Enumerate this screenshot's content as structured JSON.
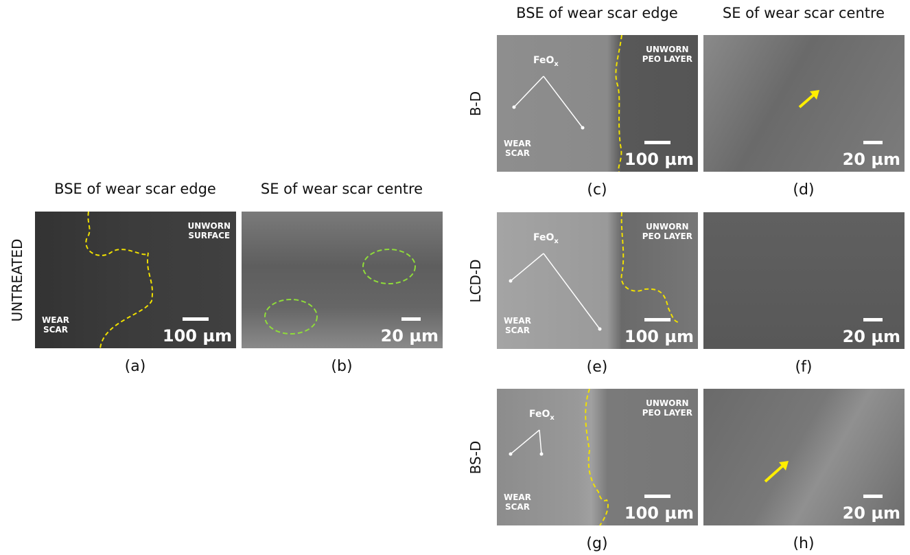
{
  "groups": [
    {
      "headers": [
        "BSE of wear scar edge",
        "SE of wear scar centre"
      ],
      "rows": [
        {
          "label": "UNTREATED",
          "panels": [
            {
              "caption": "(a)",
              "scale_bar": "100 µm",
              "unworn": [
                "UNWORN",
                "SURFACE"
              ],
              "wear": [
                "WEAR",
                "SCAR"
              ]
            },
            {
              "caption": "(b)",
              "scale_bar": "20 µm"
            }
          ]
        }
      ]
    },
    {
      "headers": [
        "BSE of wear scar edge",
        "SE of wear scar centre"
      ],
      "rows": [
        {
          "label": "B-D",
          "panels": [
            {
              "caption": "(c)",
              "scale_bar": "100 µm",
              "unworn": [
                "UNWORN",
                "PEO LAYER"
              ],
              "wear": [
                "WEAR",
                "SCAR"
              ],
              "feo": {
                "text": "FeO",
                "sub": "x"
              }
            },
            {
              "caption": "(d)",
              "scale_bar": "20 µm"
            }
          ]
        },
        {
          "label": "LCD-D",
          "panels": [
            {
              "caption": "(e)",
              "scale_bar": "100 µm",
              "unworn": [
                "UNWORN",
                "PEO LAYER"
              ],
              "wear": [
                "WEAR",
                "SCAR"
              ],
              "feo": {
                "text": "FeO",
                "sub": "x"
              }
            },
            {
              "caption": "(f)",
              "scale_bar": "20 µm"
            }
          ]
        },
        {
          "label": "BS-D",
          "panels": [
            {
              "caption": "(g)",
              "scale_bar": "100 µm",
              "unworn": [
                "UNWORN",
                "PEO LAYER"
              ],
              "wear": [
                "WEAR",
                "SCAR"
              ],
              "feo": {
                "text": "FeO",
                "sub": "x"
              }
            },
            {
              "caption": "(h)",
              "scale_bar": "20 µm"
            }
          ]
        }
      ]
    }
  ]
}
